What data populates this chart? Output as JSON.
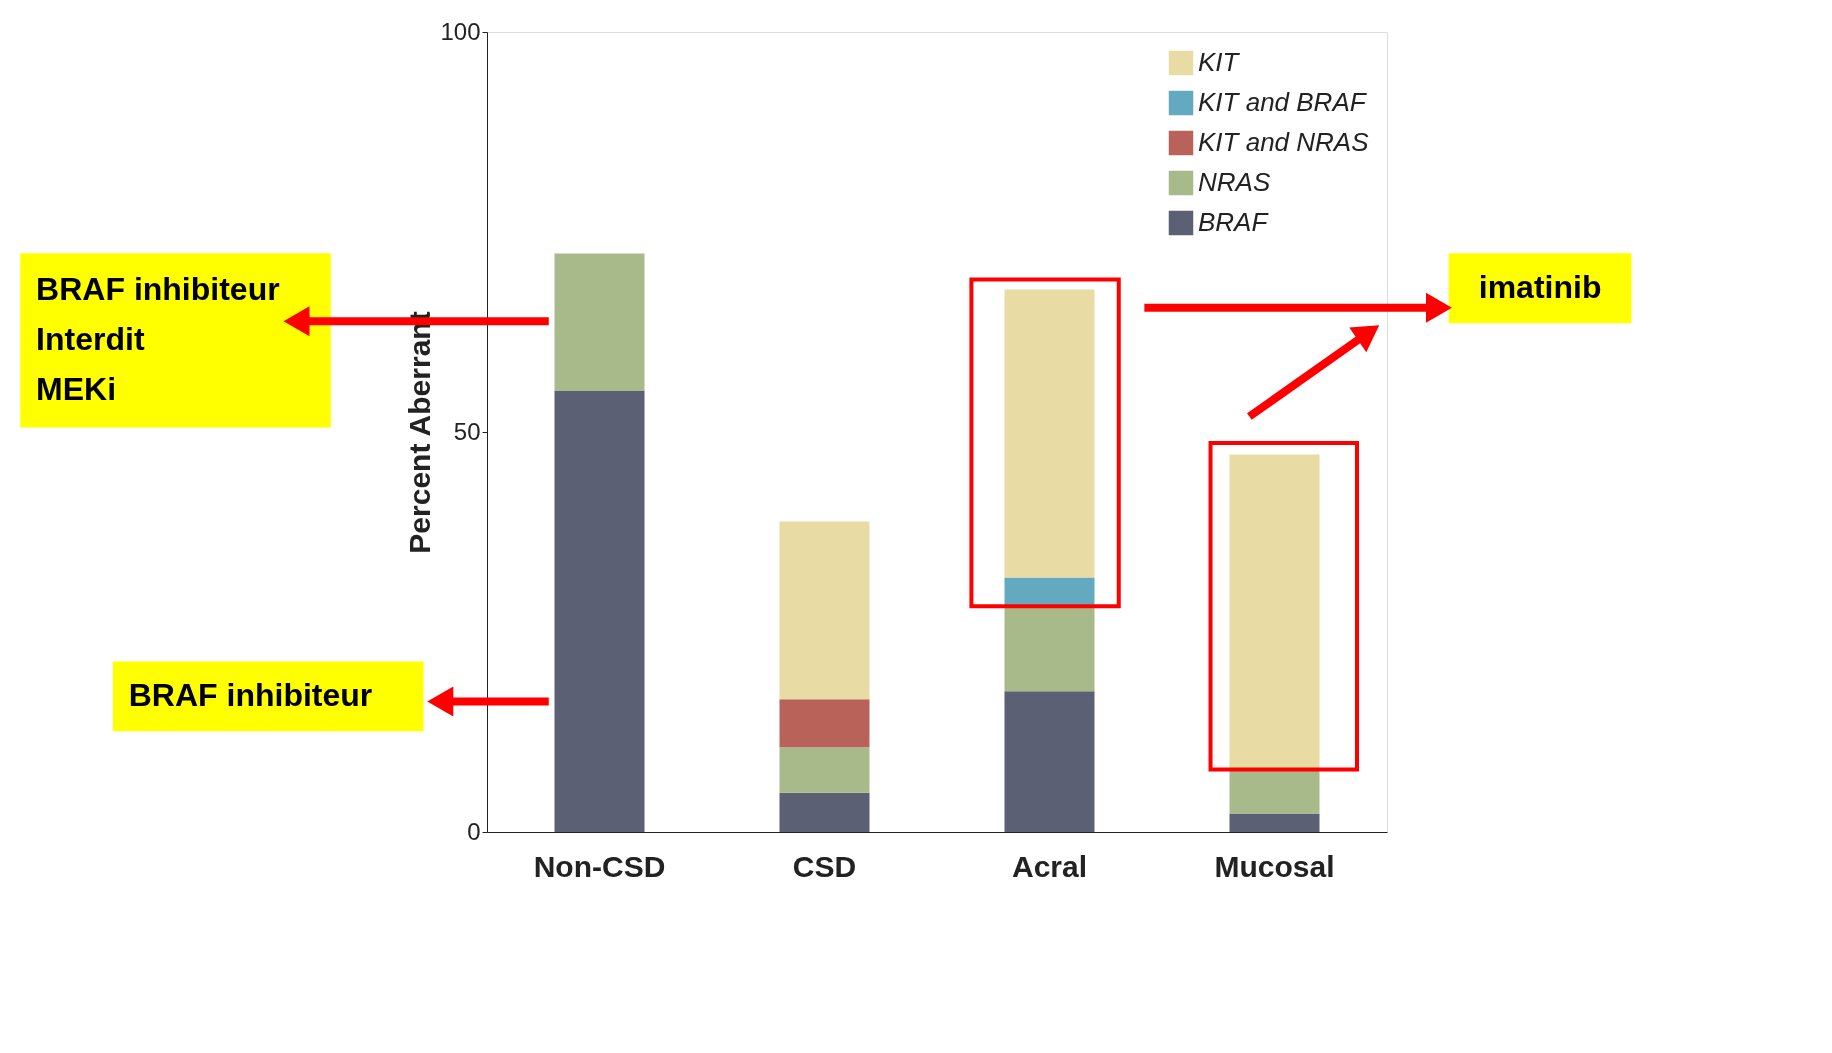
{
  "chart_data": {
    "type": "bar",
    "stacked": true,
    "ylabel": "Percent Aberrant",
    "categories": [
      "Non-CSD",
      "CSD",
      "Acral",
      "Mucosal"
    ],
    "series": [
      {
        "name": "BRAF",
        "color": "#5b6075",
        "values": [
          55.2,
          4.9,
          17.6,
          2.3
        ]
      },
      {
        "name": "NRAS",
        "color": "#a8b98a",
        "values": [
          17.1,
          5.7,
          10.6,
          5.6
        ]
      },
      {
        "name": "KIT and NRAS",
        "color": "#b9625a",
        "values": [
          0,
          6.0,
          0,
          0
        ]
      },
      {
        "name": "KIT and BRAF",
        "color": "#63a9bf",
        "values": [
          0,
          0,
          3.6,
          0
        ]
      },
      {
        "name": "KIT",
        "color": "#e8dca4",
        "values": [
          0,
          22.2,
          36.0,
          39.3
        ]
      }
    ],
    "ylim": [
      0,
      100
    ],
    "yticks": [
      0,
      50,
      100
    ],
    "grid": false,
    "legend": "top right",
    "annotations": [
      "BRAF inhibiteur\nInterdit\nMEKi",
      "BRAF inhibiteur",
      "imatinib"
    ]
  }
}
